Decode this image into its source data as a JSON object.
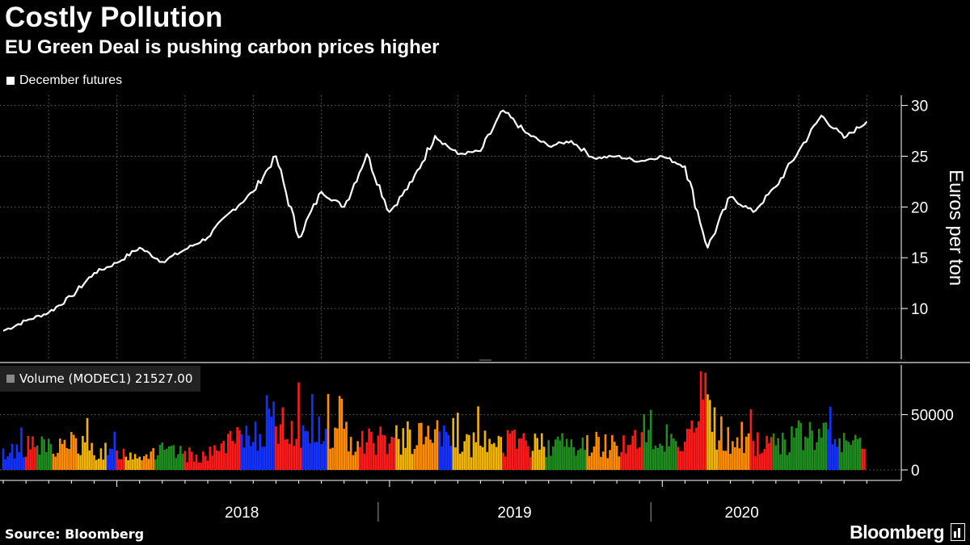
{
  "title": "Costly Pollution",
  "subtitle": "EU Green Deal is pushing carbon prices higher",
  "source": "Source: Bloomberg",
  "brand": "Bloomberg",
  "colors": {
    "background": "#000000",
    "line": "#ffffff",
    "grid": "#666666",
    "volume_green": "#1e8c1e",
    "volume_yellow": "#f2b400",
    "volume_orange": "#ff8c00",
    "volume_red": "#ff1a1a",
    "volume_blue": "#1432ff"
  },
  "chart_data": [
    {
      "type": "line",
      "title": "Costly Pollution",
      "legend": [
        "December futures"
      ],
      "ylabel": "Euros per ton",
      "ylim": [
        5,
        31
      ],
      "yticks": [
        10,
        15,
        20,
        25,
        30
      ],
      "x_ticks": [
        "2018",
        "2019",
        "2020"
      ],
      "series": [
        {
          "name": "December futures",
          "x": [
            "2017-08",
            "2017-09",
            "2017-10",
            "2017-11",
            "2017-12",
            "2018-01",
            "2018-02",
            "2018-03",
            "2018-04",
            "2018-05",
            "2018-06",
            "2018-07",
            "2018-08",
            "2018-09",
            "2018-10",
            "2018-11",
            "2018-12",
            "2019-01",
            "2019-02",
            "2019-03",
            "2019-04",
            "2019-05",
            "2019-06",
            "2019-07",
            "2019-08",
            "2019-09",
            "2019-10",
            "2019-11",
            "2019-12",
            "2020-01",
            "2020-02",
            "2020-03",
            "2020-04",
            "2020-05",
            "2020-06",
            "2020-07",
            "2020-08",
            "2020-09",
            "2020-10"
          ],
          "values": [
            7.8,
            8.8,
            9.6,
            11.2,
            13.5,
            14.5,
            16.0,
            14.6,
            15.8,
            17.0,
            19.5,
            21.5,
            25.0,
            17.0,
            21.5,
            20.0,
            25.2,
            19.5,
            22.5,
            27.0,
            25.2,
            25.5,
            29.5,
            27.3,
            26.0,
            26.5,
            24.8,
            25.0,
            24.5,
            25.0,
            24.0,
            16.0,
            21.0,
            19.5,
            22.0,
            25.5,
            29.0,
            26.8,
            28.4
          ]
        }
      ]
    },
    {
      "type": "bar",
      "legend": [
        "Volume (MODEC1) 21527.00"
      ],
      "ylim": [
        0,
        95000
      ],
      "yticks": [
        "0",
        "50000"
      ],
      "series": [
        {
          "name": "Volume (MODEC1)",
          "x": [
            "2017-08",
            "2017-09",
            "2017-10",
            "2017-11",
            "2017-12",
            "2018-01",
            "2018-02",
            "2018-03",
            "2018-04",
            "2018-05",
            "2018-06",
            "2018-07",
            "2018-08",
            "2018-09",
            "2018-10",
            "2018-11",
            "2018-12",
            "2019-01",
            "2019-02",
            "2019-03",
            "2019-04",
            "2019-05",
            "2019-06",
            "2019-07",
            "2019-08",
            "2019-09",
            "2019-10",
            "2019-11",
            "2019-12",
            "2020-01",
            "2020-02",
            "2020-03",
            "2020-04",
            "2020-05",
            "2020-06",
            "2020-07",
            "2020-08",
            "2020-09",
            "2020-10"
          ],
          "values": [
            16000,
            22000,
            20000,
            25000,
            18000,
            15000,
            16000,
            17000,
            14000,
            13000,
            24000,
            35000,
            42000,
            38000,
            33000,
            30000,
            28000,
            27000,
            30000,
            32000,
            24000,
            23000,
            27000,
            22000,
            26000,
            22000,
            24000,
            23000,
            26000,
            24000,
            30000,
            48000,
            25000,
            24000,
            26000,
            30000,
            33000,
            24000,
            21527
          ]
        }
      ]
    }
  ]
}
